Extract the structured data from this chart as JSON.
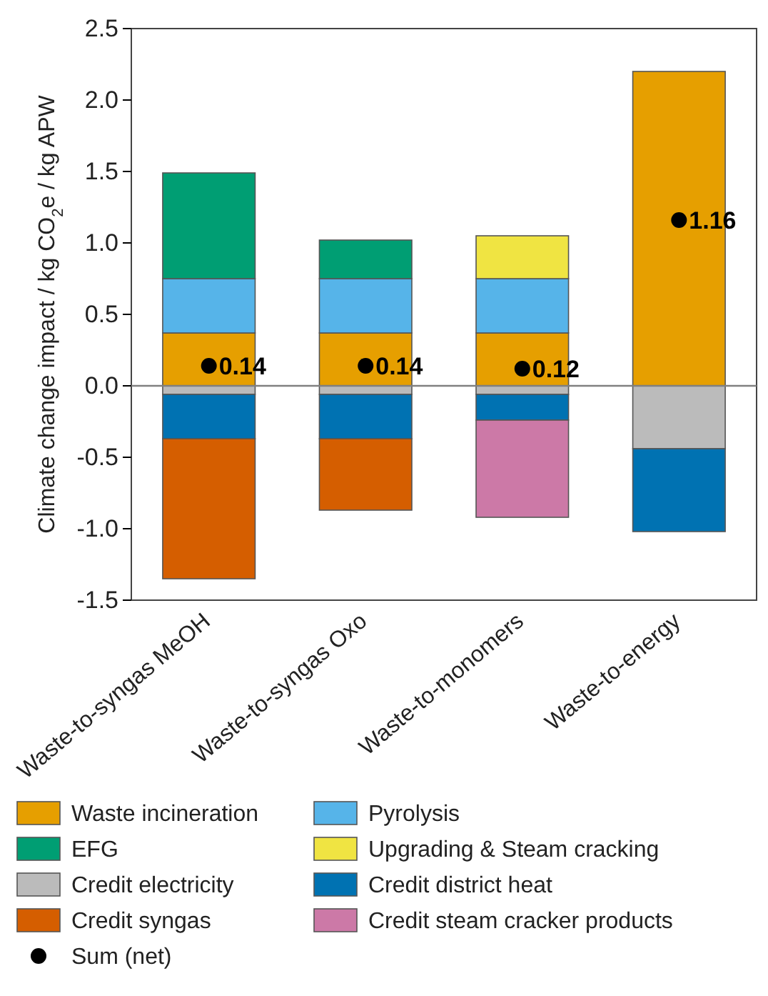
{
  "chart_data": {
    "type": "bar",
    "stacked": true,
    "ylabel": "Climate change impact / kg CO$_{2}$e / kg APW",
    "categories": [
      "Waste-to-syngas MeOH",
      "Waste-to-syngas Oxo",
      "Waste-to-monomers",
      "Waste-to-energy"
    ],
    "ylim": [
      -1.5,
      2.5
    ],
    "yticks": [
      {
        "value": -1.5,
        "label": "-1.5"
      },
      {
        "value": -1,
        "label": "-1.0"
      },
      {
        "value": -0.5,
        "label": "-0.5"
      },
      {
        "value": 0,
        "label": "0.0"
      },
      {
        "value": 0.5,
        "label": "0.5"
      },
      {
        "value": 1,
        "label": "1.0"
      },
      {
        "value": 1.5,
        "label": "1.5"
      },
      {
        "value": 2,
        "label": "2.0"
      },
      {
        "value": 2.5,
        "label": "2.5"
      }
    ],
    "legend": "bottom",
    "ref_lines": [
      {
        "axis": "y",
        "value": 0,
        "color": "#808080"
      }
    ],
    "series": [
      {
        "name": "Waste incineration",
        "color": "#e69f00",
        "values": [
          0.37,
          0.37,
          0.37,
          2.2
        ]
      },
      {
        "name": "Pyrolysis",
        "color": "#56b4e9",
        "values": [
          0.38,
          0.38,
          0.38,
          null
        ]
      },
      {
        "name": "EFG",
        "color": "#009e73",
        "values": [
          0.74,
          0.27,
          null,
          null
        ]
      },
      {
        "name": "Upgrading & Steam cracking",
        "color": "#f0e442",
        "values": [
          null,
          null,
          0.3,
          null
        ]
      },
      {
        "name": "Credit electricity",
        "color": "#bbbbbb",
        "values": [
          -0.06,
          -0.06,
          -0.06,
          -0.44
        ]
      },
      {
        "name": "Credit district heat",
        "color": "#0072b2",
        "values": [
          -0.31,
          -0.31,
          -0.18,
          -0.58
        ]
      },
      {
        "name": "Credit syngas",
        "color": "#d55e00",
        "values": [
          -0.98,
          -0.5,
          null,
          null
        ]
      },
      {
        "name": "Credit steam cracker products",
        "color": "#cc79a7",
        "values": [
          null,
          null,
          -0.68,
          null
        ]
      },
      {
        "name": "Sum (net)",
        "type": "scatter",
        "marker": "circle",
        "color": "#000000",
        "x": [
          "Waste-to-syngas MeOH",
          "Waste-to-syngas Oxo",
          "Waste-to-monomers",
          "Waste-to-energy"
        ],
        "values": [
          0.14,
          0.14,
          0.12,
          1.16
        ],
        "value_labels": [
          "0.14",
          "0.14",
          "0.12",
          "1.16"
        ]
      }
    ]
  }
}
